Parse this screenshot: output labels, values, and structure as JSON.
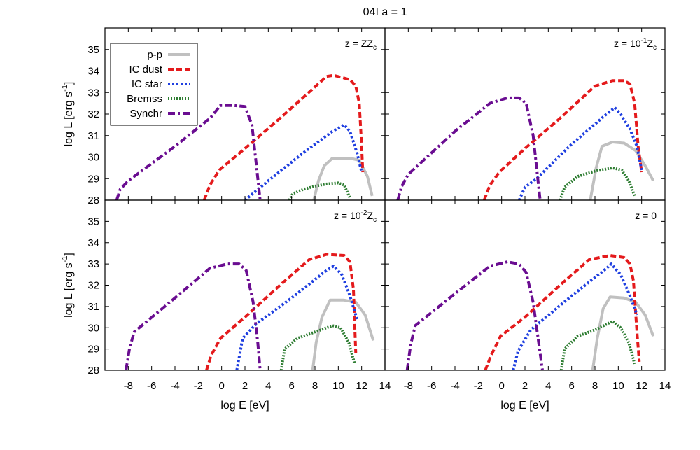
{
  "figure": {
    "title": "04I a = 1"
  },
  "colors": {
    "pp": "#c0c0c0",
    "ic_dust": "#e41a1c",
    "ic_star": "#1f3fe0",
    "brems": "#2e7d32",
    "synchr": "#6a0d91"
  },
  "chart_data": [
    {
      "type": "line",
      "panel": "top-left",
      "annotation": {
        "base": "z = Z",
        "sub": "c",
        "sup": ""
      },
      "ylabel": "log L [erg s-1]",
      "xlabel": "",
      "xlim": [
        -10,
        14
      ],
      "ylim": [
        28,
        36
      ],
      "xticks": [],
      "yticks": [
        "35",
        "34",
        "33",
        "32",
        "31",
        "30",
        "29",
        "28"
      ],
      "legend": {
        "placement": "top-left",
        "entries": [
          "p-p",
          "IC dust",
          "IC star",
          "Bremss",
          "Synchr"
        ]
      },
      "series": [
        {
          "name": "p-p",
          "points": [
            [
              7.9,
              28.0
            ],
            [
              8.3,
              28.9
            ],
            [
              8.8,
              29.6
            ],
            [
              9.5,
              29.95
            ],
            [
              11.0,
              29.95
            ],
            [
              11.8,
              29.85
            ],
            [
              12.5,
              29.1
            ],
            [
              12.9,
              28.2
            ]
          ]
        },
        {
          "name": "IC dust",
          "points": [
            [
              -1.5,
              28.0
            ],
            [
              -1.0,
              28.7
            ],
            [
              -0.2,
              29.4
            ],
            [
              2.0,
              30.4
            ],
            [
              5.0,
              31.8
            ],
            [
              9.0,
              33.75
            ],
            [
              9.6,
              33.8
            ],
            [
              11.0,
              33.6
            ],
            [
              11.5,
              33.3
            ],
            [
              11.8,
              32.5
            ],
            [
              12.0,
              30.5
            ],
            [
              12.1,
              29.3
            ]
          ]
        },
        {
          "name": "IC star",
          "points": [
            [
              2.0,
              28.0
            ],
            [
              4.0,
              28.9
            ],
            [
              7.0,
              30.2
            ],
            [
              9.5,
              31.2
            ],
            [
              10.5,
              31.5
            ],
            [
              11.0,
              31.2
            ],
            [
              11.6,
              30.2
            ],
            [
              12.0,
              29.3
            ]
          ]
        },
        {
          "name": "Bremss",
          "points": [
            [
              5.8,
              28.0
            ],
            [
              6.1,
              28.3
            ],
            [
              7.0,
              28.5
            ],
            [
              8.0,
              28.65
            ],
            [
              9.0,
              28.75
            ],
            [
              10.0,
              28.8
            ],
            [
              10.5,
              28.7
            ],
            [
              11.0,
              28.1
            ]
          ]
        },
        {
          "name": "Synchr",
          "points": [
            [
              -9.0,
              28.0
            ],
            [
              -8.7,
              28.5
            ],
            [
              -8.0,
              28.9
            ],
            [
              -4.0,
              30.5
            ],
            [
              -1.0,
              31.8
            ],
            [
              -0.1,
              32.4
            ],
            [
              1.0,
              32.4
            ],
            [
              2.0,
              32.35
            ],
            [
              2.6,
              31.5
            ],
            [
              3.0,
              29.5
            ],
            [
              3.3,
              28.0
            ]
          ]
        }
      ]
    },
    {
      "type": "line",
      "panel": "top-right",
      "annotation": {
        "base": "z = 10",
        "sub": "c",
        "sup": "-1"
      },
      "ylabel": "",
      "xlabel": "",
      "xlim": [
        -10,
        14
      ],
      "ylim": [
        28,
        36
      ],
      "xticks": [],
      "yticks": [],
      "series": [
        {
          "name": "p-p",
          "points": [
            [
              7.6,
              28.0
            ],
            [
              8.1,
              29.5
            ],
            [
              8.6,
              30.5
            ],
            [
              9.5,
              30.7
            ],
            [
              10.5,
              30.65
            ],
            [
              11.5,
              30.3
            ],
            [
              12.3,
              29.6
            ],
            [
              13.0,
              28.9
            ]
          ]
        },
        {
          "name": "IC dust",
          "points": [
            [
              -1.5,
              28.0
            ],
            [
              -1.0,
              28.7
            ],
            [
              -0.2,
              29.3
            ],
            [
              2.0,
              30.4
            ],
            [
              5.0,
              31.8
            ],
            [
              8.0,
              33.3
            ],
            [
              9.5,
              33.55
            ],
            [
              10.5,
              33.55
            ],
            [
              11.0,
              33.4
            ],
            [
              11.4,
              32.5
            ],
            [
              11.7,
              30.5
            ],
            [
              12.0,
              29.3
            ]
          ]
        },
        {
          "name": "IC star",
          "points": [
            [
              1.5,
              28.0
            ],
            [
              2.0,
              28.6
            ],
            [
              3.0,
              29.0
            ],
            [
              6.0,
              30.6
            ],
            [
              9.0,
              32.0
            ],
            [
              9.7,
              32.3
            ],
            [
              10.2,
              32.0
            ],
            [
              11.0,
              31.3
            ],
            [
              11.6,
              30.5
            ],
            [
              12.0,
              29.4
            ]
          ]
        },
        {
          "name": "Bremss",
          "points": [
            [
              5.0,
              28.0
            ],
            [
              5.4,
              28.6
            ],
            [
              6.5,
              29.1
            ],
            [
              8.0,
              29.35
            ],
            [
              9.5,
              29.5
            ],
            [
              10.3,
              29.4
            ],
            [
              10.9,
              28.9
            ],
            [
              11.4,
              28.2
            ]
          ]
        },
        {
          "name": "Synchr",
          "points": [
            [
              -8.9,
              28.0
            ],
            [
              -8.6,
              28.6
            ],
            [
              -8.0,
              29.2
            ],
            [
              -4.0,
              31.2
            ],
            [
              -1.0,
              32.5
            ],
            [
              0.5,
              32.75
            ],
            [
              1.5,
              32.75
            ],
            [
              2.1,
              32.5
            ],
            [
              2.7,
              31.0
            ],
            [
              3.1,
              29.0
            ],
            [
              3.3,
              28.0
            ]
          ]
        }
      ]
    },
    {
      "type": "line",
      "panel": "bottom-left",
      "annotation": {
        "base": "z = 10",
        "sub": "c",
        "sup": "-2"
      },
      "ylabel": "log L [erg s-1]",
      "xlabel": "log E [eV]",
      "xlim": [
        -10,
        14
      ],
      "ylim": [
        28,
        36
      ],
      "xticks": [
        "-8",
        "-6",
        "-4",
        "-2",
        "0",
        "2",
        "4",
        "6",
        "8",
        "10",
        "12",
        "14"
      ],
      "yticks": [
        "35",
        "34",
        "33",
        "32",
        "31",
        "30",
        "29",
        "28"
      ],
      "series": [
        {
          "name": "p-p",
          "points": [
            [
              7.8,
              28.0
            ],
            [
              8.1,
              29.3
            ],
            [
              8.6,
              30.5
            ],
            [
              9.3,
              31.3
            ],
            [
              10.5,
              31.3
            ],
            [
              11.5,
              31.2
            ],
            [
              12.3,
              30.6
            ],
            [
              13.0,
              29.4
            ]
          ]
        },
        {
          "name": "IC dust",
          "points": [
            [
              -1.3,
              28.0
            ],
            [
              -0.9,
              28.7
            ],
            [
              -0.1,
              29.5
            ],
            [
              2.0,
              30.5
            ],
            [
              5.0,
              32.0
            ],
            [
              7.5,
              33.2
            ],
            [
              9.0,
              33.45
            ],
            [
              10.5,
              33.4
            ],
            [
              11.0,
              33.1
            ],
            [
              11.3,
              31.8
            ],
            [
              11.5,
              28.8
            ]
          ]
        },
        {
          "name": "IC star",
          "points": [
            [
              1.3,
              28.0
            ],
            [
              1.8,
              29.5
            ],
            [
              3.0,
              30.2
            ],
            [
              6.0,
              31.4
            ],
            [
              9.0,
              32.7
            ],
            [
              9.6,
              32.9
            ],
            [
              10.3,
              32.5
            ],
            [
              11.0,
              31.5
            ],
            [
              11.6,
              30.4
            ]
          ]
        },
        {
          "name": "Bremss",
          "points": [
            [
              5.1,
              28.0
            ],
            [
              5.4,
              29.0
            ],
            [
              6.5,
              29.5
            ],
            [
              8.0,
              29.8
            ],
            [
              9.5,
              30.1
            ],
            [
              10.2,
              30.0
            ],
            [
              10.9,
              29.3
            ],
            [
              11.4,
              28.3
            ]
          ]
        },
        {
          "name": "Synchr",
          "points": [
            [
              -8.2,
              28.0
            ],
            [
              -7.9,
              29.0
            ],
            [
              -7.5,
              29.8
            ],
            [
              -4.0,
              31.4
            ],
            [
              -1.0,
              32.8
            ],
            [
              0.5,
              33.0
            ],
            [
              1.5,
              33.0
            ],
            [
              2.1,
              32.7
            ],
            [
              2.7,
              31.2
            ],
            [
              3.1,
              29.3
            ],
            [
              3.3,
              28.0
            ]
          ]
        }
      ]
    },
    {
      "type": "line",
      "panel": "bottom-right",
      "annotation": {
        "base": "z = 0",
        "sub": "",
        "sup": ""
      },
      "ylabel": "",
      "xlabel": "log E [eV]",
      "xlim": [
        -10,
        14
      ],
      "ylim": [
        28,
        36
      ],
      "xticks": [
        "-8",
        "-6",
        "-4",
        "-2",
        "0",
        "2",
        "4",
        "6",
        "8",
        "10",
        "12",
        "14"
      ],
      "yticks": [],
      "series": [
        {
          "name": "p-p",
          "points": [
            [
              7.8,
              28.0
            ],
            [
              8.2,
              29.5
            ],
            [
              8.7,
              30.9
            ],
            [
              9.3,
              31.45
            ],
            [
              10.5,
              31.4
            ],
            [
              11.5,
              31.2
            ],
            [
              12.3,
              30.6
            ],
            [
              13.0,
              29.6
            ]
          ]
        },
        {
          "name": "IC dust",
          "points": [
            [
              -1.4,
              28.0
            ],
            [
              -0.9,
              28.7
            ],
            [
              -0.1,
              29.6
            ],
            [
              2.0,
              30.5
            ],
            [
              5.0,
              32.0
            ],
            [
              7.5,
              33.2
            ],
            [
              9.3,
              33.4
            ],
            [
              10.5,
              33.3
            ],
            [
              11.0,
              33.0
            ],
            [
              11.3,
              32.2
            ],
            [
              11.6,
              29.8
            ],
            [
              11.8,
              28.4
            ]
          ]
        },
        {
          "name": "IC star",
          "points": [
            [
              1.0,
              28.0
            ],
            [
              1.4,
              28.9
            ],
            [
              2.5,
              29.9
            ],
            [
              6.0,
              31.5
            ],
            [
              9.0,
              32.8
            ],
            [
              9.4,
              33.0
            ],
            [
              10.2,
              32.5
            ],
            [
              11.0,
              31.5
            ],
            [
              11.6,
              30.6
            ]
          ]
        },
        {
          "name": "Bremss",
          "points": [
            [
              5.1,
              28.0
            ],
            [
              5.4,
              29.0
            ],
            [
              6.5,
              29.6
            ],
            [
              8.0,
              29.9
            ],
            [
              9.5,
              30.3
            ],
            [
              10.2,
              30.0
            ],
            [
              10.9,
              29.3
            ],
            [
              11.4,
              28.3
            ]
          ]
        },
        {
          "name": "Synchr",
          "points": [
            [
              -8.1,
              28.0
            ],
            [
              -7.8,
              29.2
            ],
            [
              -7.4,
              30.1
            ],
            [
              -4.0,
              31.6
            ],
            [
              -1.0,
              32.9
            ],
            [
              0.5,
              33.1
            ],
            [
              1.5,
              33.0
            ],
            [
              2.1,
              32.6
            ],
            [
              2.7,
              31.2
            ],
            [
              3.2,
              29.2
            ],
            [
              3.5,
              28.0
            ]
          ]
        }
      ]
    }
  ]
}
